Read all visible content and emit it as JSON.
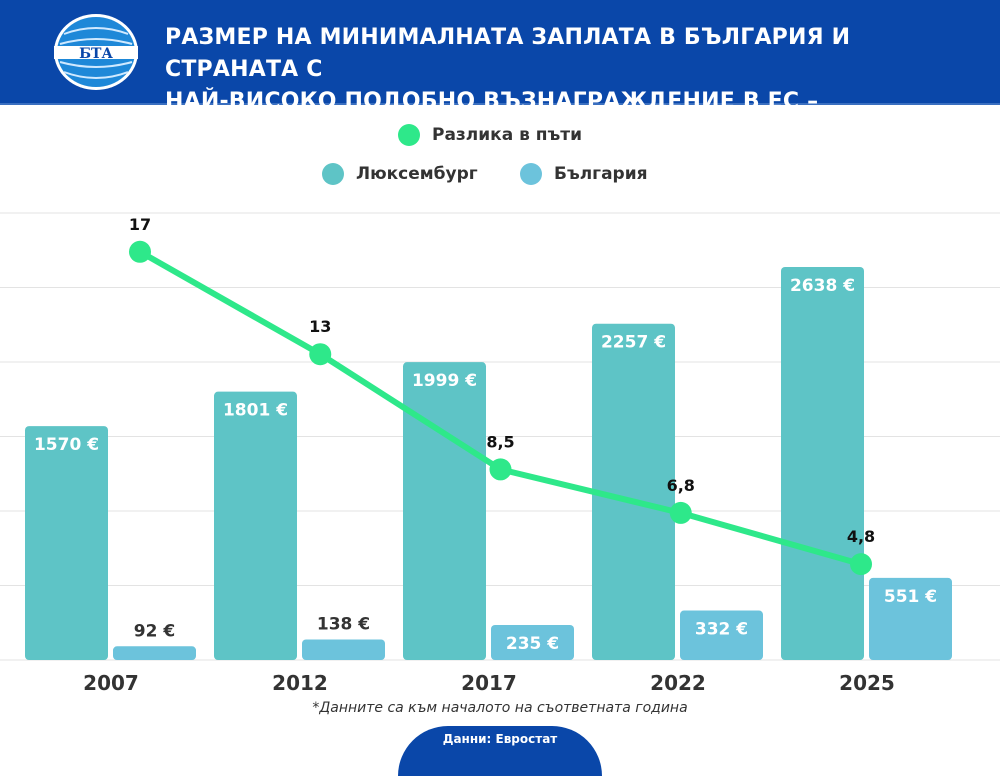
{
  "header": {
    "logo_text": "БТА",
    "title_line1": "РАЗМЕР НА МИНИМАЛНАТА ЗАПЛАТА В БЪЛГАРИЯ И СТРАНАТА С",
    "title_line2": "НАЙ-ВИСОКО ПОДОБНО ВЪЗНАГРАЖДЕНИЕ В ЕС – ЛЮКСЕМБУРГ"
  },
  "colors": {
    "header": "#0a47a9",
    "luxembourg": "#5ec4c6",
    "bulgaria": "#6cc3dc",
    "difference": "#2ee88a"
  },
  "chart_data": {
    "type": "bar",
    "categories": [
      "2007",
      "2012",
      "2017",
      "2022",
      "2025"
    ],
    "series": [
      {
        "name": "Люксембург",
        "type": "bar",
        "values": [
          1570,
          1801,
          1999,
          2257,
          2638
        ],
        "labels": [
          "1570 €",
          "1801 €",
          "1999 €",
          "2257 €",
          "2638 €"
        ]
      },
      {
        "name": "България",
        "type": "bar",
        "values": [
          92,
          138,
          235,
          332,
          551
        ],
        "labels": [
          "92 €",
          "138 €",
          "235 €",
          "332 €",
          "551 €"
        ]
      },
      {
        "name": "Разлика в пъти",
        "type": "line",
        "values": [
          17,
          13,
          8.5,
          6.8,
          4.8
        ],
        "labels": [
          "17",
          "13",
          "8,5",
          "6,8",
          "4,8"
        ]
      }
    ],
    "ylim": [
      0,
      3000
    ],
    "grid": true,
    "legend_placement": "top-center"
  },
  "footer": {
    "note": "*Данните са към началото на съответната година",
    "source": "Данни: Евростат"
  }
}
